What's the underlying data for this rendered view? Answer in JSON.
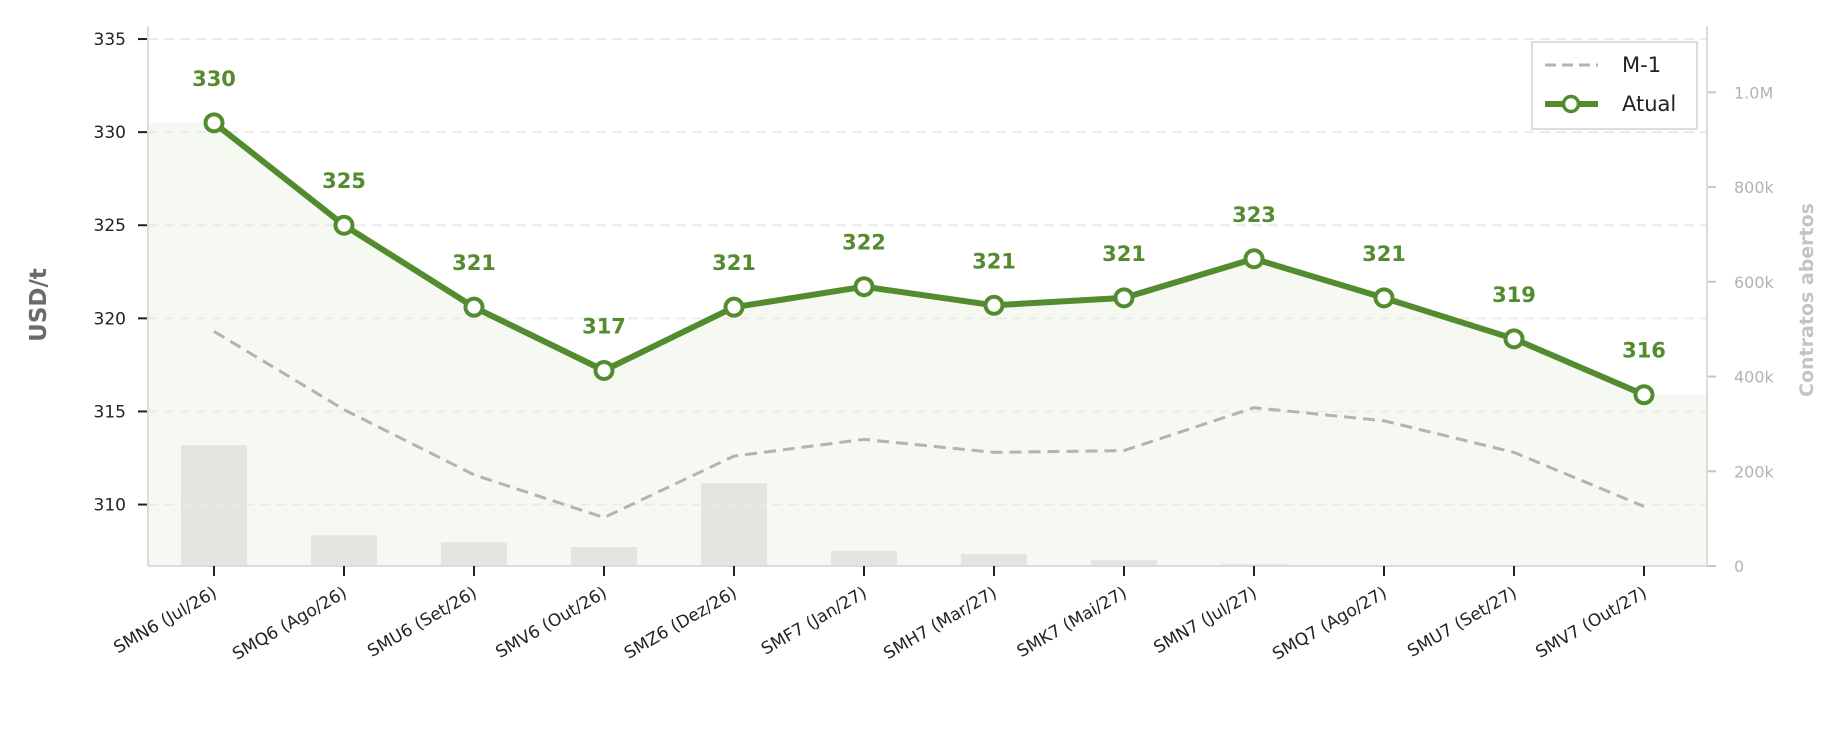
{
  "chart_data": {
    "type": "line",
    "categories": [
      "SMN6 (Jul/26)",
      "SMQ6 (Ago/26)",
      "SMU6 (Set/26)",
      "SMV6 (Out/26)",
      "SMZ6 (Dez/26)",
      "SMF7 (Jan/27)",
      "SMH7 (Mar/27)",
      "SMK7 (Mai/27)",
      "SMN7 (Jul/27)",
      "SMQ7 (Ago/27)",
      "SMU7 (Set/27)",
      "SMV7 (Out/27)"
    ],
    "series": [
      {
        "name": "Atual",
        "values": [
          330.5,
          325.0,
          320.6,
          317.2,
          320.6,
          321.7,
          320.7,
          321.1,
          323.2,
          321.1,
          318.9,
          315.9
        ],
        "labels": [
          "330",
          "325",
          "321",
          "317",
          "321",
          "322",
          "321",
          "321",
          "323",
          "321",
          "319",
          "316"
        ],
        "color": "#538b2f"
      },
      {
        "name": "M-1",
        "values": [
          319.3,
          315.1,
          311.6,
          309.3,
          312.6,
          313.5,
          312.8,
          312.9,
          315.2,
          314.5,
          312.8,
          309.9
        ],
        "color": "#b3b3b3"
      }
    ],
    "open_interest": {
      "values": [
        255000,
        65000,
        50000,
        40000,
        175000,
        32000,
        25000,
        12000,
        4000,
        2000,
        1500,
        1000
      ],
      "color": "#e3e5e0"
    },
    "ylabel": "USD/t",
    "ylim": [
      306.7,
      335.7
    ],
    "yticks": [
      310,
      315,
      320,
      325,
      330,
      335
    ],
    "y2label": "Contratos abertos",
    "y2lim": [
      0,
      1140000
    ],
    "y2ticks": [
      0,
      200000,
      400000,
      600000,
      800000,
      1000000
    ],
    "y2ticklabels": [
      "0",
      "200k",
      "400k",
      "600k",
      "800k",
      "1.0M"
    ],
    "area_fill_color": "#f6f8f2",
    "grid": true,
    "legend": {
      "position": "top-right",
      "entries": [
        "M-1",
        "Atual"
      ]
    }
  }
}
